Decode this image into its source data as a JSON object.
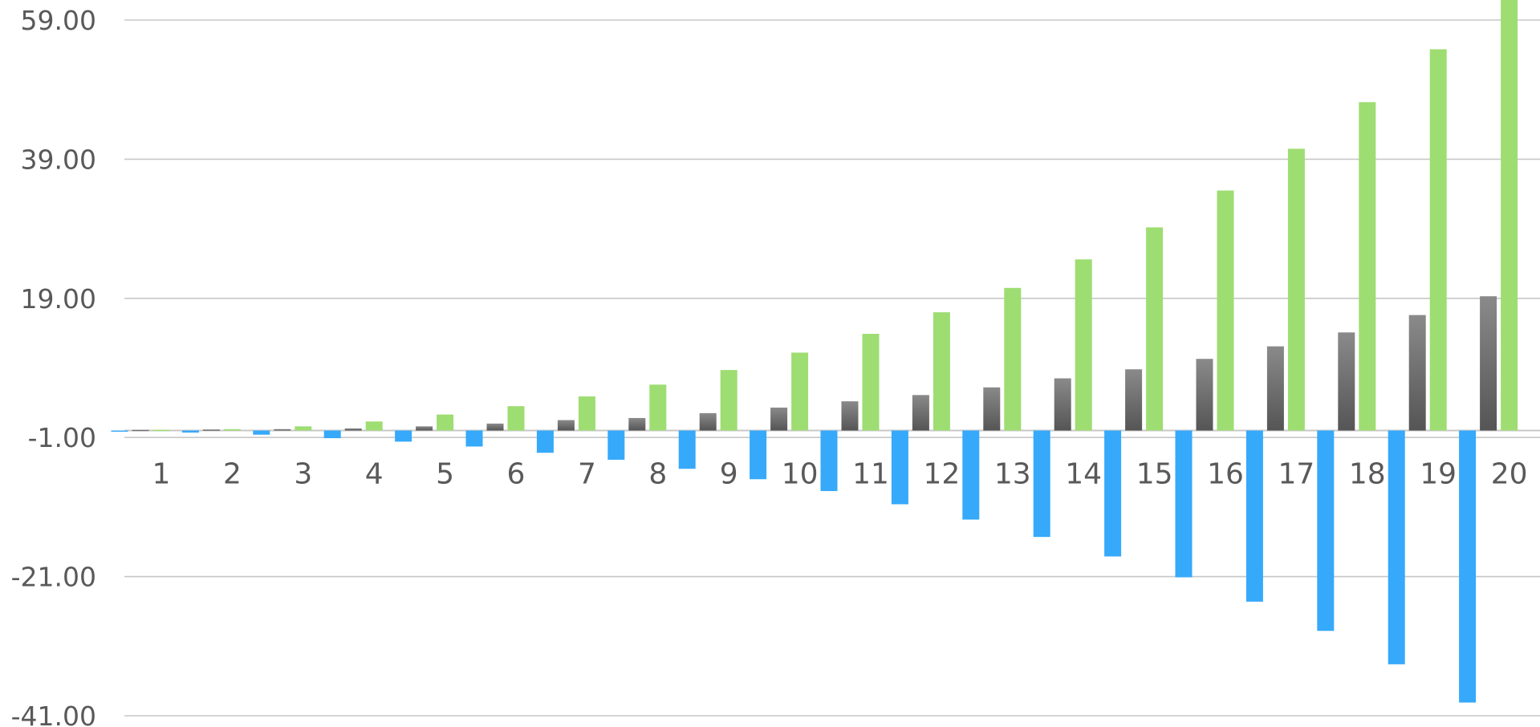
{
  "chart_data": {
    "type": "bar",
    "title": "",
    "xlabel": "",
    "ylabel": "",
    "categories": [
      "1",
      "2",
      "3",
      "4",
      "5",
      "6",
      "7",
      "8",
      "9",
      "10",
      "11",
      "12",
      "13",
      "14",
      "15",
      "16",
      "17",
      "18",
      "19",
      "20"
    ],
    "series": [
      {
        "color": "#36A9FA",
        "values": [
          -0.1,
          -0.3,
          -0.6,
          -1.1,
          -1.6,
          -2.3,
          -3.2,
          -4.2,
          -5.5,
          -7.0,
          -8.7,
          -10.6,
          -12.8,
          -15.3,
          -18.1,
          -21.1,
          -24.6,
          -28.8,
          -33.6,
          -39.1
        ]
      },
      {
        "color": "#6e6e6e",
        "values": [
          0.1,
          0.15,
          0.2,
          0.3,
          0.6,
          1.0,
          1.5,
          1.8,
          2.5,
          3.3,
          4.2,
          5.1,
          6.2,
          7.5,
          8.8,
          10.3,
          12.1,
          14.1,
          16.6,
          19.3
        ]
      },
      {
        "color": "#9EDD72",
        "values": [
          0.1,
          0.2,
          0.6,
          1.3,
          2.3,
          3.5,
          4.9,
          6.6,
          8.7,
          11.2,
          13.9,
          17.0,
          20.5,
          24.6,
          29.2,
          34.5,
          40.5,
          47.2,
          54.8,
          63.0
        ]
      }
    ],
    "ylim": [
      -41,
      59
    ],
    "yticks": [
      "59.00",
      "39.00",
      "19.00",
      "-1.00",
      "-21.00",
      "-41.00"
    ],
    "ytick_values": [
      59,
      39,
      19,
      -1,
      -21,
      -41
    ],
    "grid": true,
    "legend": "none"
  }
}
